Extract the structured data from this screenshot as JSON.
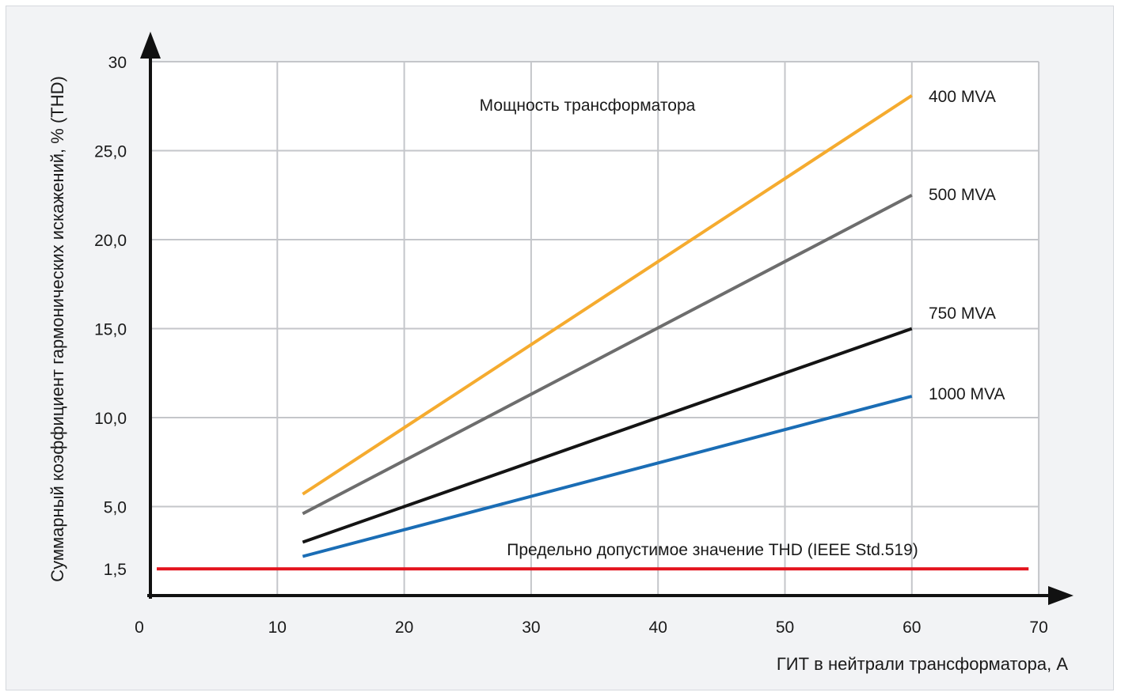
{
  "chart_data": {
    "type": "line",
    "title": "",
    "xlabel": "ГИТ в нейтрали трансформатора, А",
    "ylabel": "Суммарный коэффициент гармонических искажений, % (THD)",
    "xlim": [
      0,
      70
    ],
    "ylim": [
      0,
      30
    ],
    "x_ticks": [
      {
        "value": 0,
        "label": "0"
      },
      {
        "value": 10,
        "label": "10"
      },
      {
        "value": 20,
        "label": "20"
      },
      {
        "value": 30,
        "label": "30"
      },
      {
        "value": 40,
        "label": "40"
      },
      {
        "value": 50,
        "label": "50"
      },
      {
        "value": 60,
        "label": "60"
      },
      {
        "value": 70,
        "label": "70"
      }
    ],
    "y_ticks": [
      {
        "value": 5,
        "label": "5,0"
      },
      {
        "value": 10,
        "label": "10,0"
      },
      {
        "value": 15,
        "label": "15,0"
      },
      {
        "value": 20,
        "label": "20,0"
      },
      {
        "value": 25,
        "label": "25,0"
      },
      {
        "value": 30,
        "label": "30"
      }
    ],
    "y_grid_values": [
      5,
      10,
      15,
      20,
      25,
      30
    ],
    "x_grid_values": [
      10,
      20,
      30,
      40,
      50,
      60,
      70
    ],
    "grid": true,
    "legend_title": "Мощность трансформатора",
    "series": [
      {
        "name": "400 MVA",
        "color": "#f5ab2f",
        "x": [
          12,
          60
        ],
        "y": [
          5.7,
          28.1
        ]
      },
      {
        "name": "500 MVA",
        "color": "#6d6d6d",
        "x": [
          12,
          60
        ],
        "y": [
          4.6,
          22.5
        ]
      },
      {
        "name": "750 MVA",
        "color": "#141414",
        "x": [
          12,
          60
        ],
        "y": [
          3.0,
          15.0
        ]
      },
      {
        "name": "1000 MVA",
        "color": "#1a6db5",
        "x": [
          12,
          60
        ],
        "y": [
          2.2,
          11.2
        ]
      }
    ],
    "limit_line": {
      "value": 1.5,
      "label": "1,5",
      "annotation": "Предельно допустимое значение THD (IEEE Std.519)",
      "color": "#e3121c",
      "x": [
        0.5,
        69.2
      ]
    },
    "axis_color": "#111111",
    "grid_color": "#c4c6ca",
    "plot_background": "#ffffff",
    "panel_background": "#f2f3f5"
  }
}
